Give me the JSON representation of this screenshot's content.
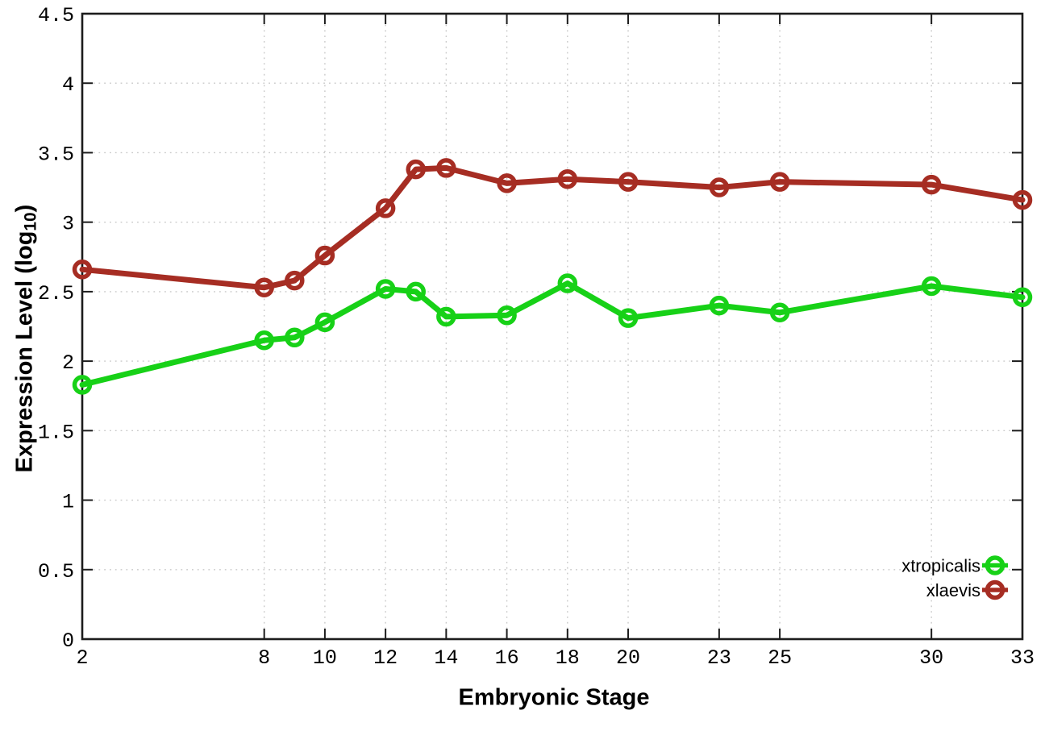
{
  "chart_data": {
    "type": "line",
    "title": "",
    "xlabel": "Embryonic Stage",
    "ylabel": "Expression Level (log10)",
    "ylabel_prefix": "Expression Level (log",
    "ylabel_sub": "10",
    "ylabel_suffix": ")",
    "xlim": [
      2,
      33
    ],
    "ylim": [
      0,
      4.5
    ],
    "grid": true,
    "legend_position": "inside bottom right",
    "x_ticks": [
      {
        "value": 2,
        "label": "2"
      },
      {
        "value": 8,
        "label": "8"
      },
      {
        "value": 10,
        "label": "10"
      },
      {
        "value": 12,
        "label": "12"
      },
      {
        "value": 14,
        "label": "14"
      },
      {
        "value": 16,
        "label": "16"
      },
      {
        "value": 18,
        "label": "18"
      },
      {
        "value": 20,
        "label": "20"
      },
      {
        "value": 23,
        "label": "23"
      },
      {
        "value": 25,
        "label": "25"
      },
      {
        "value": 30,
        "label": "30"
      },
      {
        "value": 33,
        "label": "33"
      }
    ],
    "y_ticks": [
      {
        "value": 0,
        "label": "0"
      },
      {
        "value": 0.5,
        "label": "0.5"
      },
      {
        "value": 1,
        "label": "1"
      },
      {
        "value": 1.5,
        "label": "1.5"
      },
      {
        "value": 2,
        "label": "2"
      },
      {
        "value": 2.5,
        "label": "2.5"
      },
      {
        "value": 3,
        "label": "3"
      },
      {
        "value": 3.5,
        "label": "3.5"
      },
      {
        "value": 4,
        "label": "4"
      },
      {
        "value": 4.5,
        "label": "4.5"
      }
    ],
    "x": [
      2,
      8,
      9,
      10,
      12,
      13,
      14,
      16,
      18,
      20,
      23,
      25,
      30,
      33
    ],
    "series": [
      {
        "name": "xtropicalis",
        "color": "#17d117",
        "values": [
          1.83,
          2.15,
          2.17,
          2.28,
          2.52,
          2.5,
          2.32,
          2.33,
          2.56,
          2.31,
          2.4,
          2.35,
          2.54,
          2.46
        ]
      },
      {
        "name": "xlaevis",
        "color": "#a62d23",
        "values": [
          2.66,
          2.53,
          2.58,
          2.76,
          3.1,
          3.38,
          3.39,
          3.28,
          3.31,
          3.29,
          3.25,
          3.29,
          3.27,
          3.16
        ]
      }
    ],
    "colors": {
      "grid": "#c9c9c9",
      "frame": "#1c1c1c",
      "tick_text": "#000000",
      "background": "#ffffff"
    }
  }
}
